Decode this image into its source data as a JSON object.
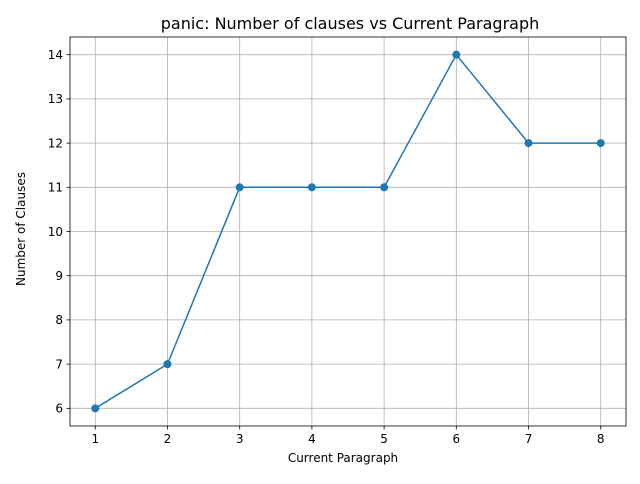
{
  "chart_data": {
    "type": "line",
    "title": "panic: Number of clauses vs Current Paragraph",
    "xlabel": "Current Paragraph",
    "ylabel": "Number of Clauses",
    "x": [
      1,
      2,
      3,
      4,
      5,
      6,
      7,
      8
    ],
    "y": [
      6,
      7,
      11,
      11,
      11,
      14,
      12,
      12
    ],
    "xticks": [
      1,
      2,
      3,
      4,
      5,
      6,
      7,
      8
    ],
    "yticks": [
      6,
      7,
      8,
      9,
      10,
      11,
      12,
      13,
      14
    ],
    "xlim": [
      0.65,
      8.35
    ],
    "ylim": [
      5.6,
      14.4
    ],
    "grid": true,
    "marker": "circle",
    "line_color": "#1f77b4",
    "grid_color": "#b0b0b0"
  }
}
